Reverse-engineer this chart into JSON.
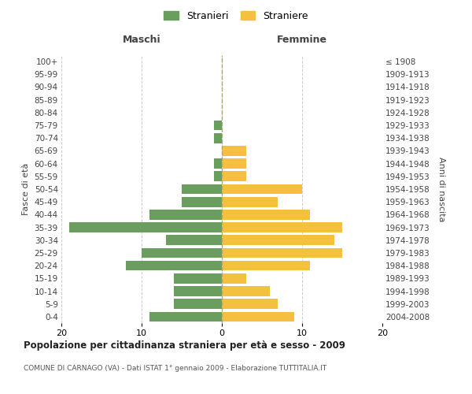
{
  "age_groups": [
    "0-4",
    "5-9",
    "10-14",
    "15-19",
    "20-24",
    "25-29",
    "30-34",
    "35-39",
    "40-44",
    "45-49",
    "50-54",
    "55-59",
    "60-64",
    "65-69",
    "70-74",
    "75-79",
    "80-84",
    "85-89",
    "90-94",
    "95-99",
    "100+"
  ],
  "birth_years": [
    "2004-2008",
    "1999-2003",
    "1994-1998",
    "1989-1993",
    "1984-1988",
    "1979-1983",
    "1974-1978",
    "1969-1973",
    "1964-1968",
    "1959-1963",
    "1954-1958",
    "1949-1953",
    "1944-1948",
    "1939-1943",
    "1934-1938",
    "1929-1933",
    "1924-1928",
    "1919-1923",
    "1914-1918",
    "1909-1913",
    "≤ 1908"
  ],
  "maschi": [
    9,
    6,
    6,
    6,
    12,
    10,
    7,
    19,
    9,
    5,
    5,
    1,
    1,
    0,
    1,
    1,
    0,
    0,
    0,
    0,
    0
  ],
  "femmine": [
    9,
    7,
    6,
    3,
    11,
    15,
    14,
    15,
    11,
    7,
    10,
    3,
    3,
    3,
    0,
    0,
    0,
    0,
    0,
    0,
    0
  ],
  "color_maschi": "#6a9e5e",
  "color_femmine": "#f5c040",
  "title": "Popolazione per cittadinanza straniera per età e sesso - 2009",
  "subtitle": "COMUNE DI CARNAGO (VA) - Dati ISTAT 1° gennaio 2009 - Elaborazione TUTTITALIA.IT",
  "label_maschi": "Maschi",
  "label_femmine": "Femmine",
  "ylabel_left": "Fasce di età",
  "ylabel_right": "Anni di nascita",
  "legend_maschi": "Stranieri",
  "legend_femmine": "Straniere",
  "xlim": 20,
  "background_color": "#ffffff",
  "grid_color": "#cccccc"
}
